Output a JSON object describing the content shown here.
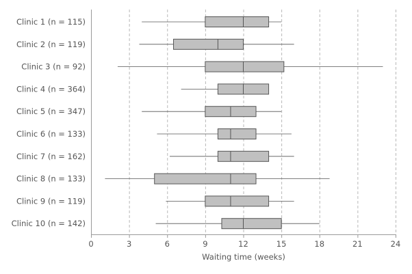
{
  "chart_data": {
    "type": "boxplot",
    "orientation": "horizontal",
    "xlabel": "Waiting time (weeks)",
    "xlim": [
      0,
      24
    ],
    "xticks": [
      0,
      3,
      6,
      9,
      12,
      15,
      18,
      21,
      24
    ],
    "grid": "vertical-dashed",
    "categories": [
      "Clinic 1 (n = 115)",
      "Clinic 2 (n = 119)",
      "Clinic 3 (n = 92)",
      "Clinic 4 (n = 364)",
      "Clinic 5 (n = 347)",
      "Clinic 6 (n = 133)",
      "Clinic 7 (n = 162)",
      "Clinic 8 (n = 133)",
      "Clinic 9 (n = 119)",
      "Clinic 10 (n = 142)"
    ],
    "boxes": [
      {
        "min": 4.0,
        "q1": 9.0,
        "median": 12.0,
        "q3": 14.0,
        "max": 15.0
      },
      {
        "min": 3.8,
        "q1": 6.5,
        "median": 10.0,
        "q3": 12.0,
        "max": 16.0
      },
      {
        "min": 2.1,
        "q1": 9.0,
        "median": 12.0,
        "q3": 15.2,
        "max": 23.0
      },
      {
        "min": 7.1,
        "q1": 10.0,
        "median": 12.0,
        "q3": 14.0,
        "max": 14.0
      },
      {
        "min": 4.0,
        "q1": 9.0,
        "median": 11.0,
        "q3": 13.0,
        "max": 15.0
      },
      {
        "min": 5.2,
        "q1": 10.0,
        "median": 11.0,
        "q3": 13.0,
        "max": 15.8
      },
      {
        "min": 6.2,
        "q1": 10.0,
        "median": 11.0,
        "q3": 14.0,
        "max": 16.0
      },
      {
        "min": 1.1,
        "q1": 5.0,
        "median": 11.0,
        "q3": 13.0,
        "max": 18.8
      },
      {
        "min": 5.9,
        "q1": 9.0,
        "median": 11.0,
        "q3": 14.0,
        "max": 16.0
      },
      {
        "min": 5.1,
        "q1": 10.3,
        "median": 12.0,
        "q3": 15.0,
        "max": 18.0
      }
    ],
    "colors": {
      "box_fill": "#c0c0c0",
      "stroke": "#555555",
      "grid": "#b8b8b8"
    }
  }
}
